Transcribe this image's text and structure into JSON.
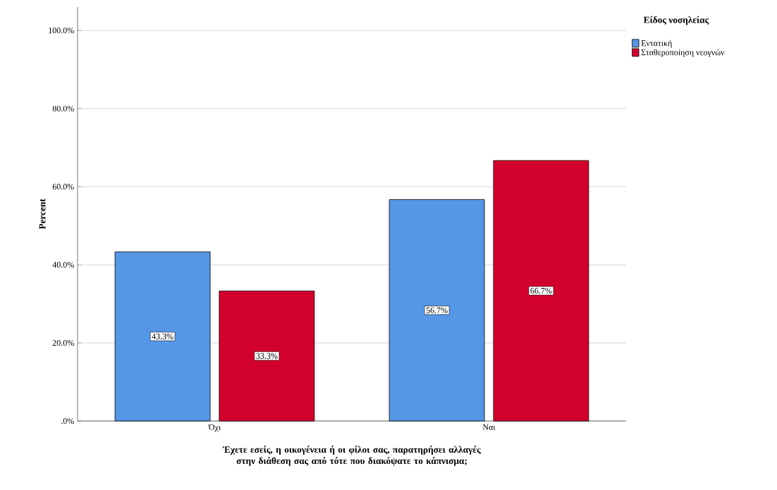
{
  "chart_data": {
    "type": "bar",
    "xlabel": "Έχετε εσείς, η οικογένεια ή οι φίλοι σας, παρατηρήσει αλλαγές στην διάθεση σας από τότε που διακόψατε το κάπνισμα;",
    "ylabel": "Percent",
    "legend_title": "Είδος νοσηλείας",
    "categories": [
      "Όχι",
      "Ναι"
    ],
    "series": [
      {
        "name": "Εντατική",
        "color": "#5596e6",
        "values": [
          43.3,
          56.7
        ],
        "value_labels": [
          "43.3%",
          "56.7%"
        ]
      },
      {
        "name": "Σταθεροποίηση νεογνών",
        "color": "#d2002d",
        "values": [
          33.3,
          66.7
        ],
        "value_labels": [
          "33.3%",
          "66.7%"
        ]
      }
    ],
    "ylim": [
      0,
      106
    ],
    "yticks": [
      {
        "value": 0,
        "label": ".0%"
      },
      {
        "value": 20,
        "label": "20.0%"
      },
      {
        "value": 40,
        "label": "40.0%"
      },
      {
        "value": 60,
        "label": "60.0%"
      },
      {
        "value": 80,
        "label": "80.0%"
      },
      {
        "value": 100,
        "label": "100.0%"
      }
    ],
    "grid": "y",
    "legend": "top right"
  }
}
